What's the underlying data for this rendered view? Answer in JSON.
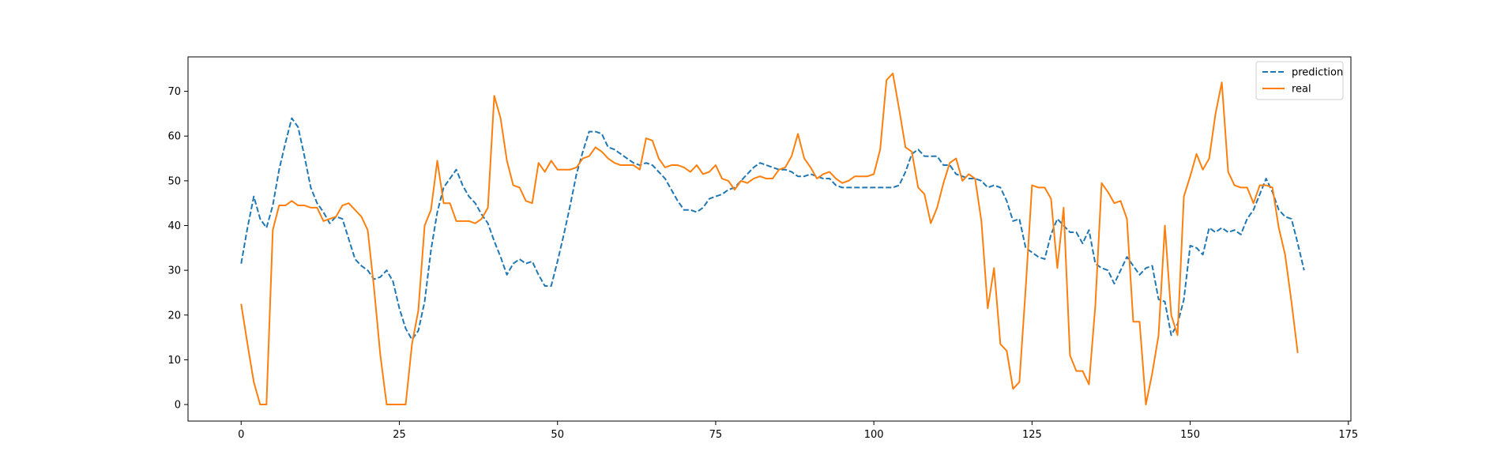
{
  "chart_data": {
    "type": "line",
    "title": "",
    "xlabel": "",
    "ylabel": "",
    "xlim": [
      -8.4,
      175.4
    ],
    "ylim": [
      -3.7,
      77.7
    ],
    "xticks": [
      0,
      25,
      50,
      75,
      100,
      125,
      150,
      175
    ],
    "yticks": [
      0,
      10,
      20,
      30,
      40,
      50,
      60,
      70
    ],
    "grid": false,
    "legend_position": "top-right",
    "colors": {
      "prediction": "#1f77b4",
      "real": "#ff7f0e"
    },
    "series": [
      {
        "name": "prediction",
        "style": "dashed",
        "values": [
          31.5,
          39.5,
          46.5,
          41.5,
          39.5,
          44.5,
          52.5,
          58.5,
          64,
          62,
          55.5,
          48.5,
          45,
          43,
          40.5,
          42,
          41.5,
          37,
          32.5,
          31,
          30,
          28,
          28.5,
          30,
          27.5,
          21.5,
          17,
          14.5,
          16.5,
          23,
          34.5,
          43,
          48.5,
          50.5,
          52.5,
          49,
          46.5,
          45,
          42.5,
          40.5,
          36.5,
          33,
          29,
          31.5,
          32.5,
          31.5,
          32,
          29,
          26.5,
          26.5,
          32,
          38,
          44.5,
          51.5,
          56.5,
          61,
          61,
          60.5,
          57.5,
          57,
          56,
          55,
          54,
          53.5,
          54,
          53.5,
          52,
          50.5,
          48,
          45.5,
          43.5,
          43.5,
          43,
          44,
          46,
          46.5,
          47,
          48,
          48.5,
          50,
          51.5,
          53,
          54,
          53.5,
          53,
          52.5,
          52.5,
          52,
          51,
          51,
          51.5,
          51,
          50.5,
          50.5,
          49,
          48.5,
          48.5,
          48.5,
          48.5,
          48.5,
          48.5,
          48.5,
          48.5,
          48.5,
          49,
          52,
          56,
          57,
          55.5,
          55.5,
          55.5,
          53.5,
          53.5,
          51.5,
          51,
          50.5,
          50.5,
          50,
          48.5,
          49,
          48.5,
          45.5,
          41,
          41.5,
          35,
          34,
          33,
          32.5,
          38,
          41.5,
          40,
          38.5,
          38.5,
          36,
          39,
          31.5,
          30.5,
          30,
          27,
          30,
          33,
          31,
          29,
          30.5,
          31,
          23.5,
          23,
          15.5,
          18,
          23.5,
          35.5,
          35,
          33.5,
          39.5,
          38.5,
          39.5,
          38.5,
          39,
          38,
          41.5,
          43.5,
          47,
          50.5,
          47.5,
          43.5,
          42,
          41.5,
          36,
          30
        ]
      },
      {
        "name": "real",
        "style": "solid",
        "values": [
          22.5,
          13.5,
          5,
          0,
          0,
          39,
          44.5,
          44.5,
          45.5,
          44.5,
          44.5,
          44,
          44,
          41,
          41.5,
          42,
          44.5,
          45,
          43.5,
          42,
          39,
          26,
          11,
          0,
          0,
          0,
          0,
          13.5,
          21,
          40,
          43.5,
          54.5,
          45,
          45,
          41,
          41,
          41,
          40.5,
          41.5,
          44,
          69,
          64,
          54.5,
          49,
          48.5,
          45.5,
          45,
          54,
          52,
          54.5,
          52.5,
          52.5,
          52.5,
          53,
          55,
          55.5,
          57.5,
          56.5,
          55,
          54,
          53.5,
          53.5,
          53.5,
          52.5,
          59.5,
          59,
          55,
          53,
          53.5,
          53.5,
          53,
          52,
          53.5,
          51.5,
          52,
          53.5,
          50.5,
          50,
          48,
          50,
          49.5,
          50.5,
          51,
          50.5,
          50.5,
          52.5,
          53,
          55.5,
          60.5,
          55,
          53,
          50.5,
          51.5,
          52,
          50.5,
          49.5,
          50,
          51,
          51,
          51,
          51.5,
          57,
          72.5,
          74,
          66,
          57.5,
          56.5,
          48.5,
          47,
          40.5,
          44,
          49.5,
          54,
          55,
          50,
          51.5,
          50.5,
          41,
          21.5,
          30.5,
          13.5,
          12,
          3.5,
          5,
          26,
          49,
          48.5,
          48.5,
          46,
          30.5,
          44,
          11,
          7.5,
          7.5,
          4.5,
          22,
          49.5,
          47.5,
          45,
          45.5,
          41.5,
          18.5,
          18.5,
          0,
          7,
          15.5,
          40,
          20,
          15.5,
          46.5,
          51,
          56,
          52.5,
          55,
          65,
          72,
          52,
          49,
          48.5,
          48.5,
          45,
          49,
          49,
          48.5,
          39.5,
          33.5,
          23,
          11.5
        ]
      }
    ]
  }
}
